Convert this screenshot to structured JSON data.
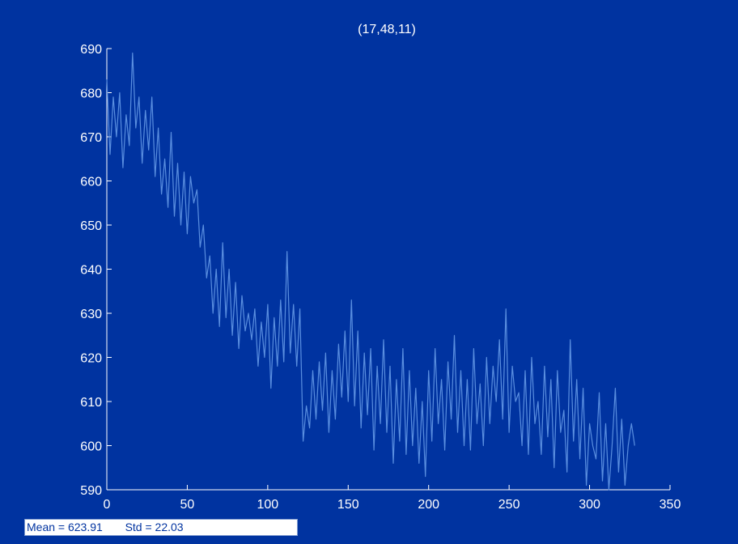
{
  "chart_data": {
    "type": "line",
    "title": "(17,48,11)",
    "xlabel": "",
    "ylabel": "",
    "xlim": [
      0,
      350
    ],
    "ylim": [
      590,
      690
    ],
    "xticks": [
      "0",
      "50",
      "100",
      "150",
      "200",
      "250",
      "300",
      "350"
    ],
    "yticks": [
      "590",
      "600",
      "610",
      "620",
      "630",
      "640",
      "650",
      "660",
      "670",
      "680",
      "690"
    ],
    "grid": false,
    "series": [
      {
        "color": "#5a8fe0",
        "x": [
          0,
          2,
          4,
          6,
          8,
          10,
          12,
          14,
          16,
          18,
          20,
          22,
          24,
          26,
          28,
          30,
          32,
          34,
          36,
          38,
          40,
          42,
          44,
          46,
          48,
          50,
          52,
          54,
          56,
          58,
          60,
          62,
          64,
          66,
          68,
          70,
          72,
          74,
          76,
          78,
          80,
          82,
          84,
          86,
          88,
          90,
          92,
          94,
          96,
          98,
          100,
          102,
          104,
          106,
          108,
          110,
          112,
          114,
          116,
          118,
          120,
          122,
          124,
          126,
          128,
          130,
          132,
          134,
          136,
          138,
          140,
          142,
          144,
          146,
          148,
          150,
          152,
          154,
          156,
          158,
          160,
          162,
          164,
          166,
          168,
          170,
          172,
          174,
          176,
          178,
          180,
          182,
          184,
          186,
          188,
          190,
          192,
          194,
          196,
          198,
          200,
          202,
          204,
          206,
          208,
          210,
          212,
          214,
          216,
          218,
          220,
          222,
          224,
          226,
          228,
          230,
          232,
          234,
          236,
          238,
          240,
          242,
          244,
          246,
          248,
          250,
          252,
          254,
          256,
          258,
          260,
          262,
          264,
          266,
          268,
          270,
          272,
          274,
          276,
          278,
          280,
          282,
          284,
          286,
          288,
          290,
          292,
          294,
          296,
          298,
          300,
          302,
          304,
          306,
          308,
          310,
          312,
          314,
          316,
          318,
          320,
          322,
          324,
          326,
          328
        ],
        "y": [
          683,
          666,
          679,
          670,
          680,
          663,
          675,
          668,
          689,
          672,
          679,
          664,
          676,
          667,
          679,
          661,
          672,
          657,
          665,
          654,
          671,
          652,
          664,
          650,
          662,
          648,
          661,
          655,
          658,
          645,
          650,
          638,
          643,
          630,
          640,
          627,
          646,
          629,
          640,
          625,
          637,
          622,
          634,
          626,
          630,
          624,
          631,
          618,
          628,
          620,
          632,
          613,
          629,
          618,
          633,
          619,
          644,
          621,
          632,
          618,
          631,
          601,
          609,
          604,
          617,
          606,
          619,
          608,
          621,
          603,
          617,
          606,
          623,
          611,
          626,
          610,
          633,
          609,
          626,
          604,
          621,
          607,
          622,
          599,
          618,
          605,
          624,
          603,
          618,
          596,
          615,
          601,
          622,
          598,
          617,
          600,
          613,
          596,
          610,
          593,
          617,
          601,
          622,
          605,
          615,
          599,
          619,
          606,
          625,
          603,
          617,
          600,
          615,
          599,
          622,
          605,
          614,
          600,
          620,
          605,
          618,
          610,
          624,
          606,
          631,
          603,
          618,
          610,
          612,
          600,
          617,
          598,
          620,
          605,
          610,
          598,
          618,
          602,
          615,
          595,
          617,
          603,
          608,
          594,
          624,
          601,
          615,
          597,
          613,
          591,
          605,
          600,
          597,
          612,
          592,
          605,
          590,
          600,
          613,
          594,
          606,
          591,
          600,
          605,
          600
        ]
      }
    ]
  },
  "stats": {
    "mean_label": "Mean = 623.91",
    "std_label": "Std = 22.03"
  }
}
